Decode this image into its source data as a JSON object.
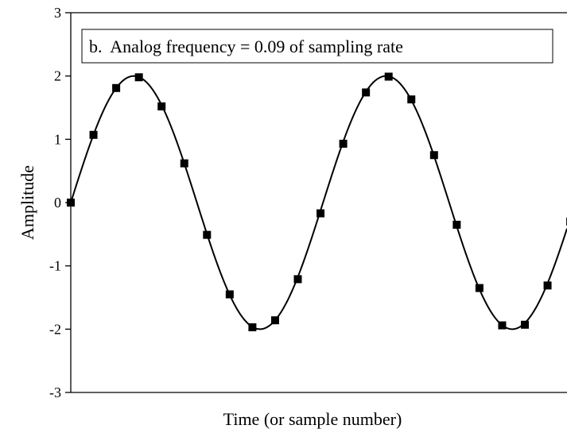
{
  "chart_data": {
    "type": "line",
    "title": "",
    "legend_label": "b.  Analog frequency = 0.09 of sampling rate",
    "xlabel": "Time (or sample number)",
    "ylabel": "Amplitude",
    "ylim": [
      -3,
      3
    ],
    "yticks": [
      3,
      2,
      1,
      0,
      -1,
      -2,
      -3
    ],
    "ytick_labels": [
      "3",
      "2",
      "1",
      "0",
      "-1",
      "-2",
      "-3"
    ],
    "x_ticks_shown": false,
    "grid": false,
    "series": [
      {
        "kind": "sampled",
        "marker": "square",
        "x": [
          0,
          1,
          2,
          3,
          4,
          5,
          6,
          7,
          8,
          9,
          10,
          11,
          12,
          13,
          14,
          15,
          16,
          17,
          18,
          19,
          20,
          21,
          22
        ],
        "values": [
          0.0,
          1.07,
          1.81,
          1.98,
          1.52,
          0.62,
          -0.51,
          -1.45,
          -1.97,
          -1.86,
          -1.21,
          -0.17,
          0.93,
          1.74,
          1.99,
          1.63,
          0.75,
          -0.35,
          -1.35,
          -1.94,
          -1.93,
          -1.31,
          -0.3
        ]
      },
      {
        "kind": "continuous",
        "amplitude": 2,
        "frequency_cycles_per_sample": 0.09
      }
    ]
  }
}
